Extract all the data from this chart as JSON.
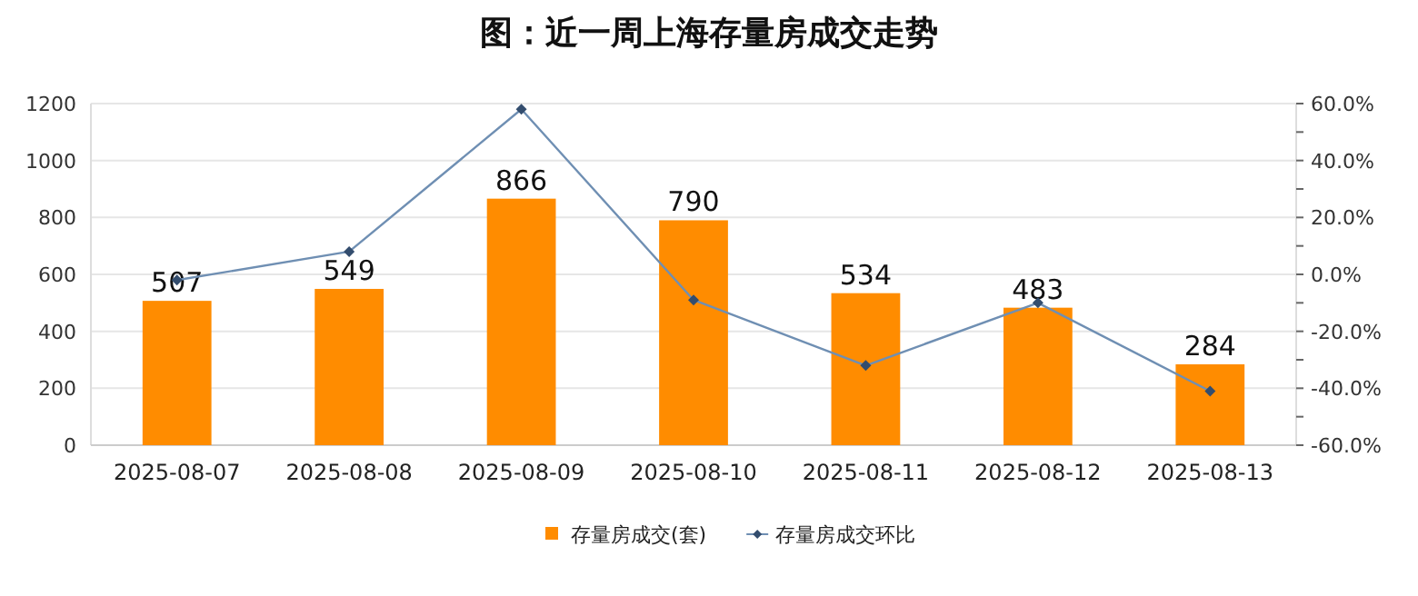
{
  "chart_data": {
    "type": "bar",
    "title": "图：近一周上海存量房成交走势",
    "categories": [
      "2025-08-07",
      "2025-08-08",
      "2025-08-09",
      "2025-08-10",
      "2025-08-11",
      "2025-08-12",
      "2025-08-13"
    ],
    "series": [
      {
        "name": "存量房成交(套)",
        "color": "#ff8c00",
        "values": [
          507,
          549,
          866,
          790,
          534,
          483,
          284
        ],
        "value_labels": [
          "507",
          "549",
          "866",
          "790",
          "534",
          "483",
          "284"
        ]
      },
      {
        "name": "存量房成交环比",
        "type": "line",
        "axis": "y2",
        "color": "#6f8fb3",
        "marker": "diamond",
        "values": [
          -2,
          8,
          58,
          -9,
          -32,
          -10,
          -41
        ]
      }
    ],
    "ylim": [
      0,
      1200
    ],
    "yticks": [
      0,
      200,
      400,
      600,
      800,
      1000,
      1200
    ],
    "y2lim": [
      -60,
      60
    ],
    "y2ticks": [
      {
        "value": -60,
        "label": "-60.0%"
      },
      {
        "value": -50,
        "label": null
      },
      {
        "value": -40,
        "label": "-40.0%"
      },
      {
        "value": -30,
        "label": null
      },
      {
        "value": -20,
        "label": "-20.0%"
      },
      {
        "value": -10,
        "label": null
      },
      {
        "value": 0,
        "label": "0.0%"
      },
      {
        "value": 10,
        "label": null
      },
      {
        "value": 20,
        "label": "20.0%"
      },
      {
        "value": 30,
        "label": null
      },
      {
        "value": 40,
        "label": "40.0%"
      },
      {
        "value": 50,
        "label": null
      },
      {
        "value": 60,
        "label": "60.0%"
      }
    ],
    "grid": "y",
    "legend": "bottom"
  }
}
